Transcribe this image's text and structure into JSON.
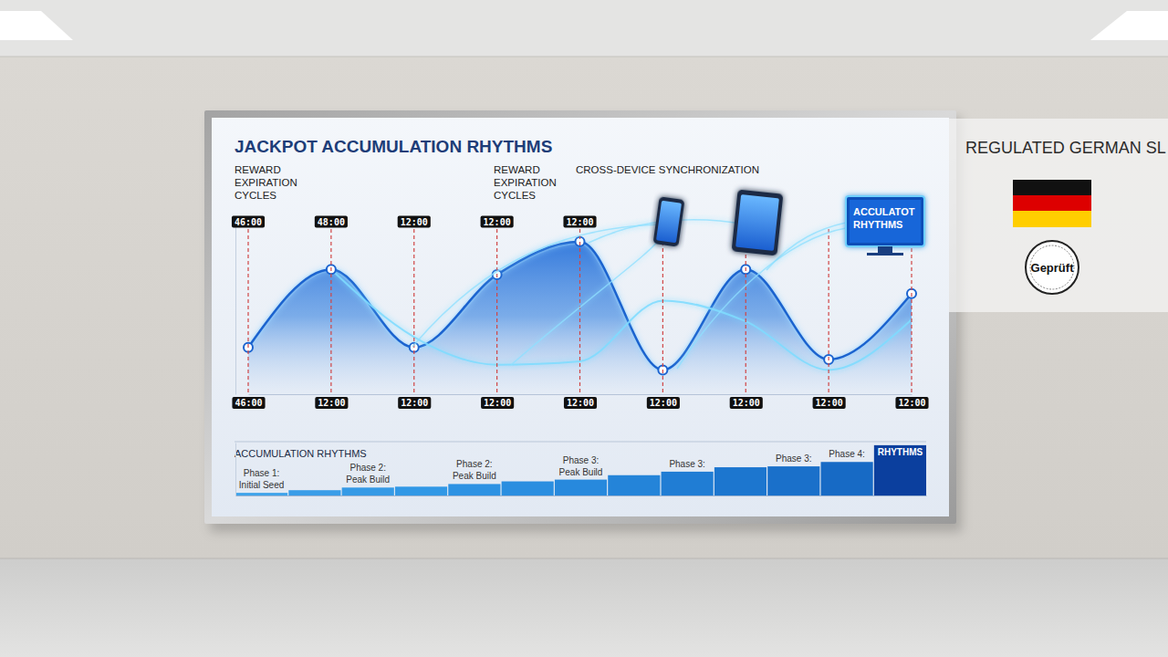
{
  "chart_data": [
    {
      "type": "area",
      "title": "JACKPOT ACCUMULATION RHYTHMS",
      "annotations": [
        [
          "REWARD",
          "EXPIRATION",
          "CYCLES"
        ],
        [
          "REWARD",
          "EXPIRATION",
          "CYCLES"
        ],
        [
          "CROSS-DEVICE SYNCHRONIZATION"
        ]
      ],
      "categories": [
        "46:00",
        "12:00",
        "12:00",
        "12:00",
        "12:00",
        "12:00",
        "12:00",
        "12:00",
        "12:00"
      ],
      "top_categories": [
        "46:00",
        "48:00",
        "12:00",
        "12:00",
        "12:00",
        null,
        null,
        null,
        null
      ],
      "ylim": [
        0,
        100
      ],
      "grid": true,
      "tick_labels": "x",
      "series": [
        {
          "type": "area",
          "color": "#1b63cf",
          "marker": "circle",
          "values": [
            27,
            72,
            27,
            69,
            88,
            14,
            72,
            20,
            58
          ]
        },
        {
          "type": "line",
          "color": "#7fdcff",
          "values": [
            null,
            72,
            33,
            17,
            19,
            54,
            42,
            14,
            43
          ]
        }
      ]
    },
    {
      "type": "bar",
      "title": "ACCUMULATION RHYTHMS",
      "categories": [
        [
          "Phase 1:",
          "Initial Seed"
        ],
        null,
        [
          "Phase 2:",
          "Peak Build"
        ],
        null,
        [
          "Phase 2:",
          "Peak Build"
        ],
        null,
        [
          "Phase 3:",
          "Peak Build"
        ],
        null,
        [
          "Phase 3:"
        ],
        null,
        [
          "Phase 3:"
        ],
        [
          "Phase 4:"
        ],
        [
          "RHYTHMS"
        ]
      ],
      "values": [
        3,
        6,
        9,
        10,
        13,
        16,
        18,
        23,
        27,
        32,
        33,
        38,
        57
      ],
      "ylim": [
        0,
        60
      ],
      "tick_labels": "x",
      "colors": [
        "#3fa3ea",
        "#3a9de8",
        "#359ae6",
        "#3198e6",
        "#2d92e3",
        "#2a8ee0",
        "#2789dd",
        "#2484d9",
        "#207dd4",
        "#1c76cf",
        "#1a70ca",
        "#176ac5",
        "#0b3f9e"
      ]
    }
  ],
  "devices": {
    "label": [
      "ACCULATOT",
      "RHYTHMS"
    ]
  },
  "badge": {
    "title": "REGULATED GERMAN SL",
    "seal": "Geprüft"
  }
}
